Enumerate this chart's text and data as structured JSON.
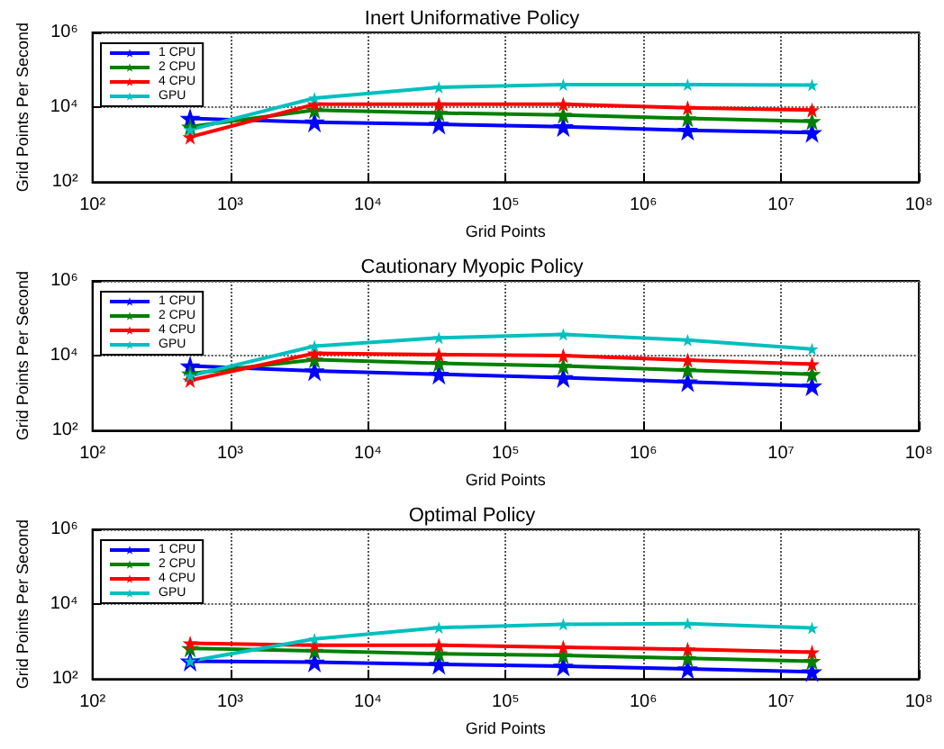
{
  "chart_data": [
    {
      "type": "line",
      "title": "Inert Uniformative Policy",
      "xlabel": "Grid Points",
      "ylabel": "Grid Points Per Second",
      "log": "xy",
      "grid": true,
      "legend": "top left",
      "marker": "star",
      "line_style": "solid",
      "x": [
        512,
        4096,
        32768,
        262144,
        2097152,
        16777216
      ],
      "xlim": [
        100,
        100000000
      ],
      "xticks": [
        {
          "value": 100,
          "label": "10²"
        },
        {
          "value": 1000,
          "label": "10³"
        },
        {
          "value": 10000,
          "label": "10⁴"
        },
        {
          "value": 100000,
          "label": "10⁵"
        },
        {
          "value": 1000000,
          "label": "10⁶"
        },
        {
          "value": 10000000,
          "label": "10⁷"
        },
        {
          "value": 100000000,
          "label": "10⁸"
        }
      ],
      "ylim": [
        100,
        1000000
      ],
      "yticks": [
        {
          "value": 100,
          "label": "10²"
        },
        {
          "value": 10000,
          "label": "10⁴"
        },
        {
          "value": 1000000,
          "label": "10⁶"
        }
      ],
      "series": [
        {
          "name": "1 CPU",
          "color": "#0000ff",
          "values": [
            5000,
            4000,
            3500,
            3000,
            2400,
            2100
          ]
        },
        {
          "name": "2 CPU",
          "color": "#008000",
          "values": [
            3000,
            8400,
            7000,
            6200,
            5000,
            4200
          ]
        },
        {
          "name": "4 CPU",
          "color": "#ff0000",
          "values": [
            1600,
            12000,
            12000,
            12000,
            9600,
            8400
          ]
        },
        {
          "name": "GPU",
          "color": "#00bfbf",
          "values": [
            2500,
            17500,
            34000,
            40000,
            40000,
            39000
          ]
        }
      ]
    },
    {
      "type": "line",
      "title": "Cautionary Myopic Policy",
      "xlabel": "Grid Points",
      "ylabel": "Grid Points Per Second",
      "log": "xy",
      "grid": true,
      "legend": "top left",
      "marker": "star",
      "line_style": "solid",
      "x": [
        512,
        4096,
        32768,
        262144,
        2097152,
        16777216
      ],
      "xlim": [
        100,
        100000000
      ],
      "xticks": [
        {
          "value": 100,
          "label": "10²"
        },
        {
          "value": 1000,
          "label": "10³"
        },
        {
          "value": 10000,
          "label": "10⁴"
        },
        {
          "value": 100000,
          "label": "10⁵"
        },
        {
          "value": 1000000,
          "label": "10⁶"
        },
        {
          "value": 10000000,
          "label": "10⁷"
        },
        {
          "value": 100000000,
          "label": "10⁸"
        }
      ],
      "ylim": [
        100,
        1000000
      ],
      "yticks": [
        {
          "value": 100,
          "label": "10²"
        },
        {
          "value": 10000,
          "label": "10⁴"
        },
        {
          "value": 1000000,
          "label": "10⁶"
        }
      ],
      "series": [
        {
          "name": "1 CPU",
          "color": "#0000ff",
          "values": [
            5300,
            3900,
            3200,
            2600,
            2000,
            1550
          ]
        },
        {
          "name": "2 CPU",
          "color": "#008000",
          "values": [
            3300,
            7800,
            6300,
            5300,
            4100,
            3200
          ]
        },
        {
          "name": "4 CPU",
          "color": "#ff0000",
          "values": [
            2200,
            11500,
            10700,
            10000,
            7600,
            5900
          ]
        },
        {
          "name": "GPU",
          "color": "#00bfbf",
          "values": [
            2900,
            18000,
            30000,
            37000,
            26000,
            15000
          ]
        }
      ]
    },
    {
      "type": "line",
      "title": "Optimal Policy",
      "xlabel": "Grid Points",
      "ylabel": "Grid Points Per Second",
      "log": "xy",
      "grid": true,
      "legend": "top left",
      "marker": "star",
      "line_style": "solid",
      "x": [
        512,
        4096,
        32768,
        262144,
        2097152,
        16777216
      ],
      "xlim": [
        100,
        100000000
      ],
      "xticks": [
        {
          "value": 100,
          "label": "10²"
        },
        {
          "value": 1000,
          "label": "10³"
        },
        {
          "value": 10000,
          "label": "10⁴"
        },
        {
          "value": 100000,
          "label": "10⁵"
        },
        {
          "value": 1000000,
          "label": "10⁶"
        },
        {
          "value": 10000000,
          "label": "10⁷"
        },
        {
          "value": 100000000,
          "label": "10⁸"
        }
      ],
      "ylim": [
        100,
        1000000
      ],
      "yticks": [
        {
          "value": 100,
          "label": "10²"
        },
        {
          "value": 10000,
          "label": "10⁴"
        },
        {
          "value": 1000000,
          "label": "10⁶"
        }
      ],
      "series": [
        {
          "name": "1 CPU",
          "color": "#0000ff",
          "values": [
            300,
            280,
            245,
            220,
            185,
            155
          ]
        },
        {
          "name": "2 CPU",
          "color": "#008000",
          "values": [
            660,
            560,
            470,
            425,
            355,
            300
          ]
        },
        {
          "name": "4 CPU",
          "color": "#ff0000",
          "values": [
            900,
            800,
            800,
            700,
            620,
            520
          ]
        },
        {
          "name": "GPU",
          "color": "#00bfbf",
          "values": [
            300,
            1170,
            2350,
            2900,
            3000,
            2300
          ]
        }
      ]
    }
  ]
}
